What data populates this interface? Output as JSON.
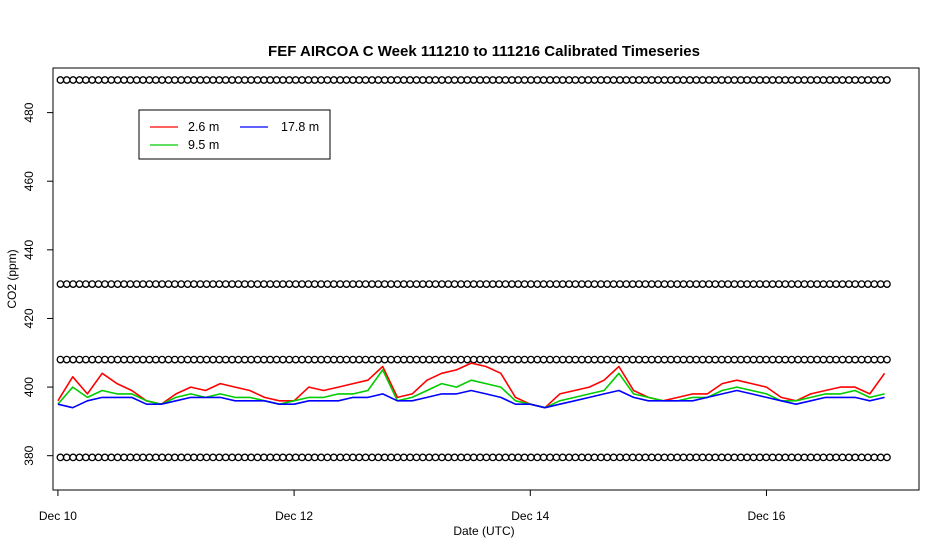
{
  "chart_data": {
    "type": "line",
    "title": "FEF AIRCOA C  Week 111210 to 111216  Calibrated Timeseries",
    "xlabel": "Date (UTC)",
    "ylabel": "CO2 (ppm)",
    "x_unit": "days",
    "xlim": [
      "2011-12-09T23:00",
      "2011-12-17T07:00"
    ],
    "ylim": [
      370,
      493
    ],
    "x_ticks": [
      {
        "value": "2011-12-10",
        "label": "Dec 10"
      },
      {
        "value": "2011-12-12",
        "label": "Dec 12"
      },
      {
        "value": "2011-12-14",
        "label": "Dec 14"
      },
      {
        "value": "2011-12-16",
        "label": "Dec 16"
      }
    ],
    "y_ticks": [
      380,
      400,
      420,
      440,
      460,
      480
    ],
    "grid": false,
    "legend": {
      "placement": "top-left",
      "entries": [
        {
          "name": "2.6 m",
          "color": "#ff0000"
        },
        {
          "name": "9.5 m",
          "color": "#00cc00"
        },
        {
          "name": "17.8 m",
          "color": "#0000ff"
        }
      ]
    },
    "series": [
      {
        "name": "2.6 m",
        "color": "#ff0000",
        "x": [
          "2011-12-10T00:00",
          "2011-12-10T03:00",
          "2011-12-10T06:00",
          "2011-12-10T09:00",
          "2011-12-10T12:00",
          "2011-12-10T15:00",
          "2011-12-10T18:00",
          "2011-12-10T21:00",
          "2011-12-11T00:00",
          "2011-12-11T03:00",
          "2011-12-11T06:00",
          "2011-12-11T09:00",
          "2011-12-11T12:00",
          "2011-12-11T15:00",
          "2011-12-11T18:00",
          "2011-12-11T21:00",
          "2011-12-12T00:00",
          "2011-12-12T03:00",
          "2011-12-12T06:00",
          "2011-12-12T09:00",
          "2011-12-12T12:00",
          "2011-12-12T15:00",
          "2011-12-12T18:00",
          "2011-12-12T21:00",
          "2011-12-13T00:00",
          "2011-12-13T03:00",
          "2011-12-13T06:00",
          "2011-12-13T09:00",
          "2011-12-13T12:00",
          "2011-12-13T15:00",
          "2011-12-13T18:00",
          "2011-12-13T21:00",
          "2011-12-14T00:00",
          "2011-12-14T03:00",
          "2011-12-14T06:00",
          "2011-12-14T09:00",
          "2011-12-14T12:00",
          "2011-12-14T15:00",
          "2011-12-14T18:00",
          "2011-12-14T21:00",
          "2011-12-15T00:00",
          "2011-12-15T03:00",
          "2011-12-15T06:00",
          "2011-12-15T09:00",
          "2011-12-15T12:00",
          "2011-12-15T15:00",
          "2011-12-15T18:00",
          "2011-12-15T21:00",
          "2011-12-16T00:00",
          "2011-12-16T03:00",
          "2011-12-16T06:00",
          "2011-12-16T09:00",
          "2011-12-16T12:00",
          "2011-12-16T15:00",
          "2011-12-16T18:00",
          "2011-12-16T21:00",
          "2011-12-17T00:00"
        ],
        "values": [
          396,
          403,
          398,
          404,
          401,
          399,
          396,
          395,
          398,
          400,
          399,
          401,
          400,
          399,
          397,
          396,
          396,
          400,
          399,
          400,
          401,
          402,
          406,
          397,
          398,
          402,
          404,
          405,
          407,
          406,
          404,
          397,
          395,
          394,
          398,
          399,
          400,
          402,
          406,
          399,
          397,
          396,
          397,
          398,
          398,
          401,
          402,
          401,
          400,
          397,
          396,
          398,
          399,
          400,
          400,
          398,
          404
        ]
      },
      {
        "name": "9.5 m",
        "color": "#00cc00",
        "x": [
          "2011-12-10T00:00",
          "2011-12-10T03:00",
          "2011-12-10T06:00",
          "2011-12-10T09:00",
          "2011-12-10T12:00",
          "2011-12-10T15:00",
          "2011-12-10T18:00",
          "2011-12-10T21:00",
          "2011-12-11T00:00",
          "2011-12-11T03:00",
          "2011-12-11T06:00",
          "2011-12-11T09:00",
          "2011-12-11T12:00",
          "2011-12-11T15:00",
          "2011-12-11T18:00",
          "2011-12-11T21:00",
          "2011-12-12T00:00",
          "2011-12-12T03:00",
          "2011-12-12T06:00",
          "2011-12-12T09:00",
          "2011-12-12T12:00",
          "2011-12-12T15:00",
          "2011-12-12T18:00",
          "2011-12-12T21:00",
          "2011-12-13T00:00",
          "2011-12-13T03:00",
          "2011-12-13T06:00",
          "2011-12-13T09:00",
          "2011-12-13T12:00",
          "2011-12-13T15:00",
          "2011-12-13T18:00",
          "2011-12-13T21:00",
          "2011-12-14T00:00",
          "2011-12-14T03:00",
          "2011-12-14T06:00",
          "2011-12-14T09:00",
          "2011-12-14T12:00",
          "2011-12-14T15:00",
          "2011-12-14T18:00",
          "2011-12-14T21:00",
          "2011-12-15T00:00",
          "2011-12-15T03:00",
          "2011-12-15T06:00",
          "2011-12-15T09:00",
          "2011-12-15T12:00",
          "2011-12-15T15:00",
          "2011-12-15T18:00",
          "2011-12-15T21:00",
          "2011-12-16T00:00",
          "2011-12-16T03:00",
          "2011-12-16T06:00",
          "2011-12-16T09:00",
          "2011-12-16T12:00",
          "2011-12-16T15:00",
          "2011-12-16T18:00",
          "2011-12-16T21:00",
          "2011-12-17T00:00"
        ],
        "values": [
          395,
          400,
          397,
          399,
          398,
          398,
          396,
          395,
          397,
          398,
          397,
          398,
          397,
          397,
          396,
          395,
          396,
          397,
          397,
          398,
          398,
          399,
          405,
          396,
          397,
          399,
          401,
          400,
          402,
          401,
          400,
          396,
          395,
          394,
          396,
          397,
          398,
          399,
          404,
          398,
          397,
          396,
          396,
          397,
          397,
          399,
          400,
          399,
          398,
          396,
          396,
          397,
          398,
          398,
          399,
          397,
          398
        ]
      },
      {
        "name": "17.8 m",
        "color": "#0000ff",
        "x": [
          "2011-12-10T00:00",
          "2011-12-10T03:00",
          "2011-12-10T06:00",
          "2011-12-10T09:00",
          "2011-12-10T12:00",
          "2011-12-10T15:00",
          "2011-12-10T18:00",
          "2011-12-10T21:00",
          "2011-12-11T00:00",
          "2011-12-11T03:00",
          "2011-12-11T06:00",
          "2011-12-11T09:00",
          "2011-12-11T12:00",
          "2011-12-11T15:00",
          "2011-12-11T18:00",
          "2011-12-11T21:00",
          "2011-12-12T00:00",
          "2011-12-12T03:00",
          "2011-12-12T06:00",
          "2011-12-12T09:00",
          "2011-12-12T12:00",
          "2011-12-12T15:00",
          "2011-12-12T18:00",
          "2011-12-12T21:00",
          "2011-12-13T00:00",
          "2011-12-13T03:00",
          "2011-12-13T06:00",
          "2011-12-13T09:00",
          "2011-12-13T12:00",
          "2011-12-13T15:00",
          "2011-12-13T18:00",
          "2011-12-13T21:00",
          "2011-12-14T00:00",
          "2011-12-14T03:00",
          "2011-12-14T06:00",
          "2011-12-14T09:00",
          "2011-12-14T12:00",
          "2011-12-14T15:00",
          "2011-12-14T18:00",
          "2011-12-14T21:00",
          "2011-12-15T00:00",
          "2011-12-15T03:00",
          "2011-12-15T06:00",
          "2011-12-15T09:00",
          "2011-12-15T12:00",
          "2011-12-15T15:00",
          "2011-12-15T18:00",
          "2011-12-15T21:00",
          "2011-12-16T00:00",
          "2011-12-16T03:00",
          "2011-12-16T06:00",
          "2011-12-16T09:00",
          "2011-12-16T12:00",
          "2011-12-16T15:00",
          "2011-12-16T18:00",
          "2011-12-16T21:00",
          "2011-12-17T00:00"
        ],
        "values": [
          395,
          394,
          396,
          397,
          397,
          397,
          395,
          395,
          396,
          397,
          397,
          397,
          396,
          396,
          396,
          395,
          395,
          396,
          396,
          396,
          397,
          397,
          398,
          396,
          396,
          397,
          398,
          398,
          399,
          398,
          397,
          395,
          395,
          394,
          395,
          396,
          397,
          398,
          399,
          397,
          396,
          396,
          396,
          396,
          397,
          398,
          399,
          398,
          397,
          396,
          395,
          396,
          397,
          397,
          397,
          396,
          397
        ]
      },
      {
        "name": "",
        "type": "scatter",
        "color": "#000000",
        "x": [
          "2011-12-10T02:00",
          "2011-12-10T14:00",
          "2011-12-11T02:00",
          "2011-12-11T14:00",
          "2011-12-12T02:00",
          "2011-12-12T14:00",
          "2011-12-13T02:00",
          "2011-12-13T14:00",
          "2011-12-14T02:00",
          "2011-12-14T14:00",
          "2011-12-15T02:00",
          "2011-12-15T14:00",
          "2011-12-16T02:00",
          "2011-12-16T14:00",
          "2011-12-17T02:00"
        ],
        "values": [
          489.5,
          489.5,
          489.5,
          489.5,
          489.5,
          489.5,
          489.5,
          489.5,
          489.5,
          489.5,
          489.5,
          489.5,
          489.5,
          489.5,
          489.5
        ]
      }
    ],
    "reference_bands": [
      {
        "y": 489.5,
        "marker": "circle",
        "color": "#000000"
      },
      {
        "y": 430,
        "marker": "circle",
        "color": "#000000"
      },
      {
        "y": 408,
        "marker": "circle",
        "color": "#000000"
      },
      {
        "y": 379.5,
        "marker": "circle",
        "color": "#000000"
      }
    ]
  }
}
